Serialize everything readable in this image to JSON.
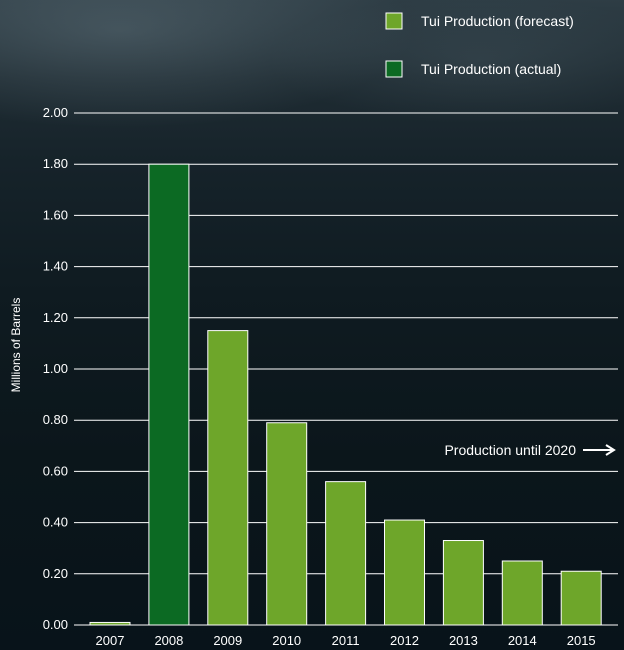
{
  "chart_data": {
    "type": "bar",
    "categories": [
      "2007",
      "2008",
      "2009",
      "2010",
      "2011",
      "2012",
      "2013",
      "2014",
      "2015"
    ],
    "values": [
      0.01,
      1.8,
      1.15,
      0.79,
      0.56,
      0.41,
      0.33,
      0.25,
      0.21
    ],
    "kinds": [
      "forecast",
      "actual",
      "forecast",
      "forecast",
      "forecast",
      "forecast",
      "forecast",
      "forecast",
      "forecast"
    ],
    "ylabel": "Millions of Barrels",
    "ylim": [
      0,
      2
    ],
    "yticks": [
      "0.00",
      "0.20",
      "0.40",
      "0.60",
      "0.80",
      "1.00",
      "1.20",
      "1.40",
      "1.60",
      "1.80",
      "2.00"
    ],
    "grid": true,
    "legend_position": "top-right",
    "legend": [
      {
        "key": "forecast",
        "label": "Tui Production (forecast)",
        "color": "#6ea62a"
      },
      {
        "key": "actual",
        "label": "Tui Production (actual)",
        "color": "#0c6a23"
      }
    ],
    "annotation": "Production until 2020"
  },
  "colors": {
    "forecast": "#6ea62a",
    "actual": "#0c6a23",
    "bar_border": "#ffffff",
    "gridline": "#ffffff"
  }
}
